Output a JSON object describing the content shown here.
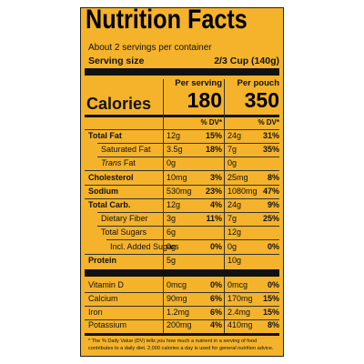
{
  "header": {
    "title": "Nutrition Facts",
    "servings": "About 2 servings per container",
    "serving_size_label": "Serving size",
    "serving_size": "2/3 Cup (140g)"
  },
  "columns": {
    "per_serving": "Per serving",
    "per_pouch": "Per pouch",
    "dv": "% DV*"
  },
  "calories": {
    "label": "Calories",
    "per_serving": "180",
    "per_pouch": "350"
  },
  "nutrients": [
    {
      "name": "Total Fat",
      "serving": "12g",
      "serving_dv": "15%",
      "pouch": "24g",
      "pouch_dv": "31%"
    },
    {
      "name": "Saturated Fat",
      "serving": "3.5g",
      "serving_dv": "18%",
      "pouch": "7g",
      "pouch_dv": "35%"
    },
    {
      "name": "Trans Fat",
      "serving": "0g",
      "pouch": "0g"
    },
    {
      "name": "Cholesterol",
      "serving": "10mg",
      "serving_dv": "3%",
      "pouch": "25mg",
      "pouch_dv": "8%"
    },
    {
      "name": "Sodium",
      "serving": "530mg",
      "serving_dv": "23%",
      "pouch": "1080mg",
      "pouch_dv": "47%"
    },
    {
      "name": "Total Carb.",
      "serving": "12g",
      "serving_dv": "4%",
      "pouch": "24g",
      "pouch_dv": "9%"
    },
    {
      "name": "Dietary Fiber",
      "serving": "3g",
      "serving_dv": "11%",
      "pouch": "7g",
      "pouch_dv": "25%"
    },
    {
      "name": "Total Sugars",
      "serving": "6g",
      "pouch": "12g"
    },
    {
      "name": "Incl. Added Sugars",
      "serving": "0g",
      "serving_dv": "0%",
      "pouch": "0g",
      "pouch_dv": "0%"
    },
    {
      "name": "Protein",
      "serving": "5g",
      "pouch": "10g"
    }
  ],
  "vitamins": [
    {
      "name": "Vitamin D",
      "serving": "0mcg",
      "serving_dv": "0%",
      "pouch": "0mcg",
      "pouch_dv": "0%"
    },
    {
      "name": "Calcium",
      "serving": "90mg",
      "serving_dv": "6%",
      "pouch": "170mg",
      "pouch_dv": "15%"
    },
    {
      "name": "Iron",
      "serving": "1.2mg",
      "serving_dv": "6%",
      "pouch": "2.4mg",
      "pouch_dv": "15%"
    },
    {
      "name": "Potassium",
      "serving": "200mg",
      "serving_dv": "4%",
      "pouch": "410mg",
      "pouch_dv": "8%"
    }
  ],
  "footnote": "* The % Daily Value (DV) tells you how much a nutrient in a serving of food contributes to a daily diet. 2,000 calories a day is used for general nutrition advice."
}
